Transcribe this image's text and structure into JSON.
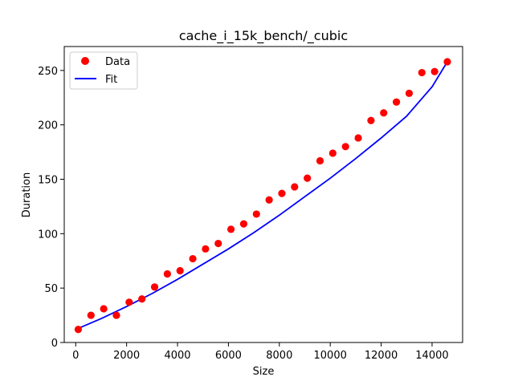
{
  "chart_data": {
    "type": "scatter",
    "title": "cache_i_15k_bench/_cubic",
    "xlabel": "Size",
    "ylabel": "Duration",
    "xlim": [
      -450,
      15200
    ],
    "ylim": [
      0,
      272
    ],
    "xticks": [
      0,
      2000,
      4000,
      6000,
      8000,
      10000,
      12000,
      14000
    ],
    "yticks": [
      0,
      50,
      100,
      150,
      200,
      250
    ],
    "legend_position": "top-left",
    "series": [
      {
        "name": "Data",
        "kind": "scatter",
        "color": "#ff0000",
        "x": [
          100,
          600,
          1100,
          1600,
          2100,
          2600,
          3100,
          3600,
          4100,
          4600,
          5100,
          5600,
          6100,
          6600,
          7100,
          7600,
          8100,
          8600,
          9100,
          9600,
          10100,
          10600,
          11100,
          11600,
          12100,
          12600,
          13100,
          13600,
          14100,
          14600
        ],
        "y": [
          12,
          25,
          31,
          25,
          37,
          40,
          51,
          63,
          66,
          77,
          86,
          91,
          104,
          109,
          118,
          131,
          137,
          143,
          151,
          167,
          174,
          180,
          188,
          204,
          211,
          221,
          229,
          248,
          249,
          258
        ]
      },
      {
        "name": "Fit",
        "kind": "line",
        "color": "#0000ff",
        "x": [
          100,
          1000,
          2000,
          3000,
          4000,
          5000,
          6000,
          7000,
          8000,
          9000,
          10000,
          11000,
          12000,
          13000,
          14000,
          14600
        ],
        "y": [
          13,
          22,
          33,
          45,
          58,
          72,
          86,
          101,
          117,
          134,
          151,
          169,
          188,
          208,
          235,
          258
        ]
      }
    ]
  }
}
